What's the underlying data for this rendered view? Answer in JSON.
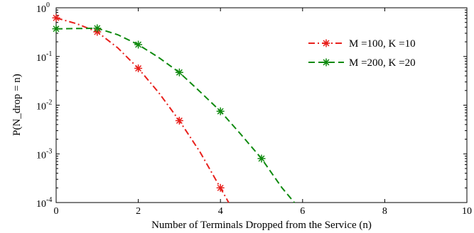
{
  "chart_data": {
    "type": "line",
    "xlabel": "Number of Terminals Dropped from the Service (n)",
    "ylabel": "P(N_drop = n)",
    "xlim": [
      0,
      10
    ],
    "ylim": [
      0.0001,
      1
    ],
    "yscale": "log",
    "x_ticks": [
      "0",
      "2",
      "4",
      "6",
      "8",
      "10"
    ],
    "y_ticks": [
      {
        "base": "10",
        "exp": "0"
      },
      {
        "base": "10",
        "exp": "-1"
      },
      {
        "base": "10",
        "exp": "-2"
      },
      {
        "base": "10",
        "exp": "-3"
      },
      {
        "base": "10",
        "exp": "-4"
      }
    ],
    "legend_position": "top-right",
    "grid": false,
    "series": [
      {
        "name": "M =100, K =10",
        "color": "#e8201c",
        "line_style": "dash-dot",
        "marker": "asterisk",
        "x": [
          0,
          1,
          2,
          3,
          4
        ],
        "y": [
          0.62,
          0.32,
          0.057,
          0.0048,
          0.0002
        ],
        "curve_x": [
          0,
          0.5,
          1,
          1.5,
          2,
          2.5,
          3,
          3.5,
          4,
          4.2
        ],
        "curve_y": [
          0.62,
          0.47,
          0.32,
          0.15,
          0.057,
          0.018,
          0.0048,
          0.0011,
          0.0002,
          0.0001
        ]
      },
      {
        "name": "M =200, K =20",
        "color": "#0f8a0f",
        "line_style": "dashed",
        "marker": "asterisk",
        "x": [
          0,
          1,
          2,
          3,
          4,
          5
        ],
        "y": [
          0.37,
          0.38,
          0.175,
          0.047,
          0.0075,
          0.0008
        ],
        "curve_x": [
          0,
          0.5,
          1,
          1.5,
          2,
          2.5,
          3,
          3.5,
          4,
          4.5,
          5,
          5.5,
          5.8
        ],
        "curve_y": [
          0.37,
          0.375,
          0.38,
          0.28,
          0.175,
          0.095,
          0.047,
          0.019,
          0.0075,
          0.0025,
          0.0008,
          0.0002,
          0.0001
        ]
      }
    ]
  }
}
